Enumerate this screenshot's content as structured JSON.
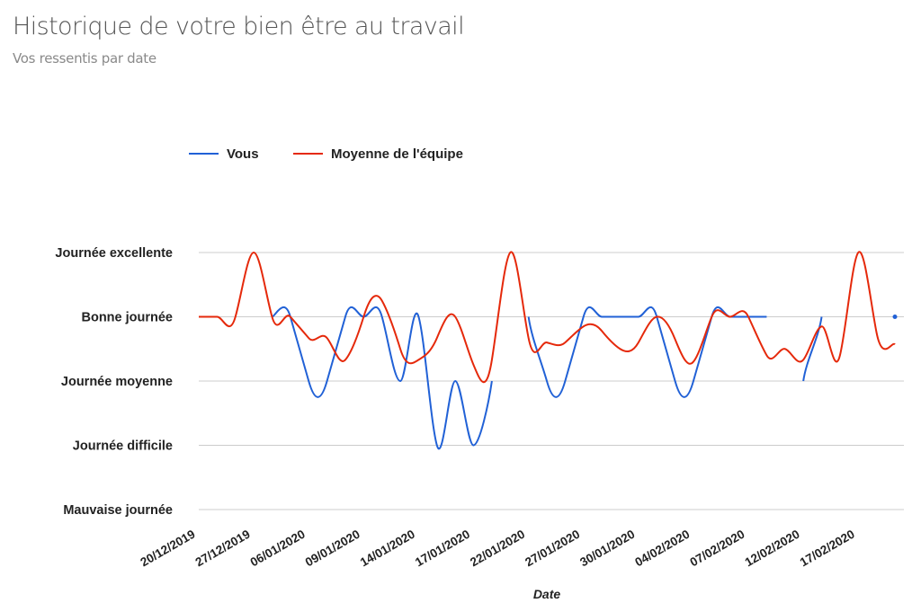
{
  "header": {
    "title": "Historique de votre bien être au travail",
    "subtitle": "Vos ressentis par date"
  },
  "chart_data": {
    "type": "line",
    "curve": "smooth",
    "legend_position": "top",
    "grid": true,
    "xlabel": "Date",
    "ylabel": "",
    "y_ticks": [
      {
        "value": 5,
        "label": "Journée excellente"
      },
      {
        "value": 4,
        "label": "Bonne journée"
      },
      {
        "value": 3,
        "label": "Journée moyenne"
      },
      {
        "value": 2,
        "label": "Journée difficile"
      },
      {
        "value": 1,
        "label": "Mauvaise journée"
      }
    ],
    "ylim": [
      1,
      5
    ],
    "x_tick_labels": [
      "20/12/2019",
      "",
      "",
      "27/12/2019",
      "",
      "",
      "06/01/2020",
      "",
      "",
      "09/01/2020",
      "",
      "",
      "14/01/2020",
      "",
      "",
      "17/01/2020",
      "",
      "",
      "22/01/2020",
      "",
      "",
      "27/01/2020",
      "",
      "",
      "30/01/2020",
      "",
      "",
      "04/02/2020",
      "",
      "",
      "07/02/2020",
      "",
      "",
      "12/02/2020",
      "",
      "",
      "17/02/2020",
      "",
      ""
    ],
    "series": [
      {
        "name": "Vous",
        "color": "#2161d6",
        "values": [
          null,
          null,
          null,
          null,
          4,
          4,
          3,
          3,
          4,
          4,
          4,
          3,
          4,
          2,
          3,
          2,
          3,
          null,
          4,
          3,
          3,
          4,
          4,
          4,
          4,
          4,
          3,
          3,
          4,
          4,
          4,
          4,
          null,
          3,
          4,
          null,
          null,
          null,
          4
        ]
      },
      {
        "name": "Moyenne de l'équipe",
        "color": "#e5290b",
        "values": [
          4,
          4,
          4,
          5,
          4,
          4,
          3.67,
          3.67,
          3.33,
          4,
          4.25,
          3.5,
          3.33,
          3.67,
          4,
          3.25,
          3.33,
          5,
          3.67,
          3.6,
          3.6,
          3.85,
          3.78,
          3.5,
          3.6,
          4,
          3.65,
          3.3,
          4,
          4,
          4,
          3.4,
          3.5,
          3.33,
          3.85,
          3.4,
          5,
          3.75,
          3.57
        ]
      }
    ]
  }
}
